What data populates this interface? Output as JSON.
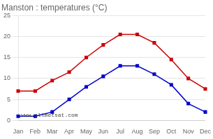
{
  "chart_data": {
    "type": "line",
    "title": "Manston : temperatures (°C)",
    "categories": [
      "Jan",
      "Feb",
      "Mar",
      "Apr",
      "May",
      "Jun",
      "Jul",
      "Aug",
      "Sep",
      "Oct",
      "Nov",
      "Dec"
    ],
    "series": [
      {
        "color": "#cc0000",
        "values": [
          7,
          7,
          9.5,
          11.5,
          15,
          18,
          20.5,
          20.5,
          18.5,
          14.5,
          10,
          7.5
        ]
      },
      {
        "color": "#0000cc",
        "values": [
          1,
          1,
          2,
          5,
          8,
          10.5,
          13,
          13,
          11,
          8.5,
          4,
          2
        ]
      }
    ],
    "ylim": [
      0,
      25
    ],
    "yticks": [
      0,
      5,
      10,
      15,
      20,
      25
    ],
    "grid": true,
    "marker": "square",
    "annotations": [
      "www.allmetsat.com"
    ]
  }
}
